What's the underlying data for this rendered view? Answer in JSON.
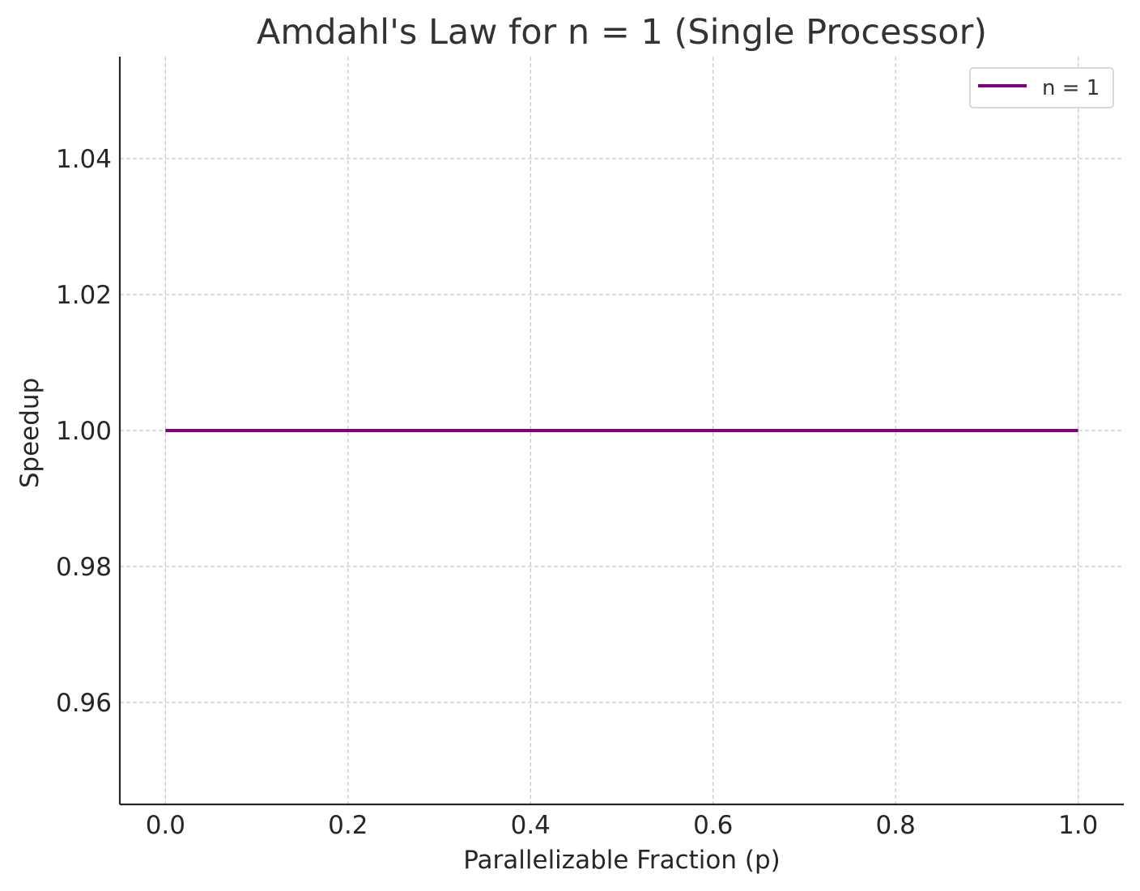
{
  "chart_data": {
    "type": "line",
    "title": "Amdahl's Law for n = 1 (Single Processor)",
    "xlabel": "Parallelizable Fraction (p)",
    "ylabel": "Speedup",
    "xlim": [
      -0.05,
      1.05
    ],
    "ylim": [
      0.945,
      1.055
    ],
    "xticks": [
      0.0,
      0.2,
      0.4,
      0.6,
      0.8,
      1.0
    ],
    "xtick_labels": [
      "0.0",
      "0.2",
      "0.4",
      "0.6",
      "0.8",
      "1.0"
    ],
    "yticks": [
      0.96,
      0.98,
      1.0,
      1.02,
      1.04
    ],
    "ytick_labels": [
      "0.96",
      "0.98",
      "1.00",
      "1.02",
      "1.04"
    ],
    "grid": true,
    "legend_position": "top-right",
    "series": [
      {
        "name": "n = 1",
        "color": "#800080",
        "x": [
          0.0,
          0.2,
          0.4,
          0.6,
          0.8,
          1.0
        ],
        "y": [
          1.0,
          1.0,
          1.0,
          1.0,
          1.0,
          1.0
        ]
      }
    ]
  }
}
